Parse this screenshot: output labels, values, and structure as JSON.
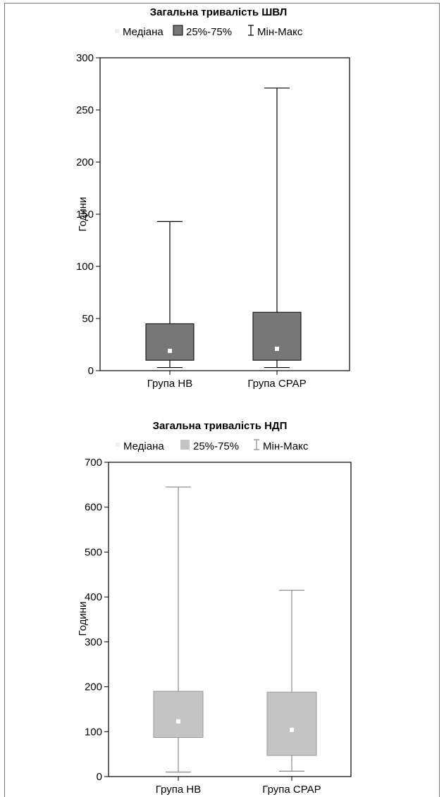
{
  "chart_data": [
    {
      "type": "box",
      "title": "Загальна тривалість ШВЛ",
      "ylabel": "Години",
      "legend": {
        "median": "Медіана",
        "box": "25%-75%",
        "whisker": "Мін-Макс"
      },
      "categories": [
        "Група НВ",
        "Група CPAP"
      ],
      "ylim": [
        0,
        300
      ],
      "yticks": [
        0,
        50,
        100,
        150,
        200,
        250,
        300
      ],
      "boxes": [
        {
          "min": 3,
          "q1": 10,
          "median": 19,
          "q3": 45,
          "max": 143
        },
        {
          "min": 3,
          "q1": 10,
          "median": 21,
          "q3": 56,
          "max": 271
        }
      ],
      "box_color": "#777777"
    },
    {
      "type": "box",
      "title": "Загальна тривалість НДП",
      "ylabel": "Години",
      "legend": {
        "median": "Медіана",
        "box": "25%-75%",
        "whisker": "Мін-Макс"
      },
      "categories": [
        "Група НВ",
        "Група CPAP"
      ],
      "ylim": [
        0,
        700
      ],
      "yticks": [
        0,
        100,
        200,
        300,
        400,
        500,
        600,
        700
      ],
      "boxes": [
        {
          "min": 10,
          "q1": 87,
          "median": 123,
          "q3": 190,
          "max": 645
        },
        {
          "min": 12,
          "q1": 47,
          "median": 104,
          "q3": 188,
          "max": 415
        }
      ],
      "box_color": "#c4c4c4"
    }
  ]
}
